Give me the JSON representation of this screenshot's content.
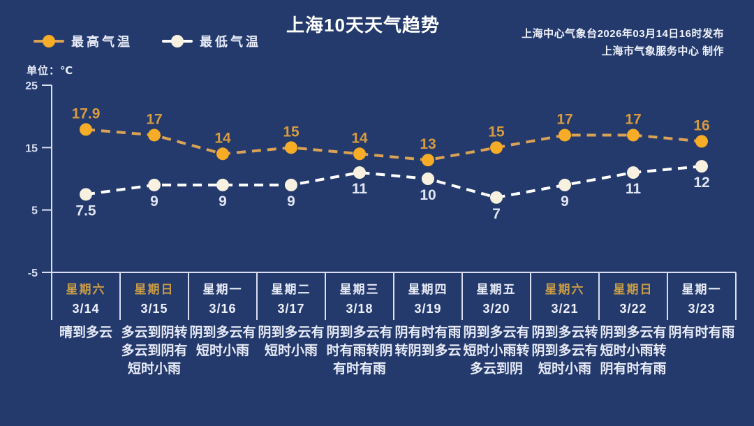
{
  "header": {
    "title": "上海10天天气趋势",
    "publisher_line1": "上海中心气象台2026年03月14日16时发布",
    "publisher_line2": "上海市气象服务中心  制作",
    "unit_label": "单位：℃",
    "legend": [
      {
        "label": "最高气温",
        "color": "#F6AC26"
      },
      {
        "label": "最低气温",
        "color": "#F8F1DF"
      }
    ]
  },
  "chart_data": {
    "type": "line",
    "title": "上海10天天气趋势",
    "ylabel": "单位：℃",
    "ylim": [
      -5,
      25
    ],
    "yticks": [
      25,
      15,
      5,
      -5
    ],
    "grid": false,
    "legend_position": "top-left",
    "line_style": "dashed",
    "categories": [
      "3/14",
      "3/15",
      "3/16",
      "3/17",
      "3/18",
      "3/19",
      "3/20",
      "3/21",
      "3/22",
      "3/23"
    ],
    "series": [
      {
        "name": "最高气温",
        "color": "#F6AC26",
        "values": [
          17.9,
          17,
          14,
          15,
          14,
          13,
          15,
          17,
          17,
          16
        ]
      },
      {
        "name": "最低气温",
        "color": "#FFFFFF",
        "values": [
          7.5,
          9,
          9,
          9,
          11,
          10,
          7,
          9,
          11,
          12
        ]
      }
    ],
    "days": [
      {
        "weekday": "星期六",
        "date": "3/14",
        "weekend": true,
        "weather": "晴到多云"
      },
      {
        "weekday": "星期日",
        "date": "3/15",
        "weekend": true,
        "weather": "多云到阴转多云到阴有短时小雨"
      },
      {
        "weekday": "星期一",
        "date": "3/16",
        "weekend": false,
        "weather": "阴到多云有短时小雨"
      },
      {
        "weekday": "星期二",
        "date": "3/17",
        "weekend": false,
        "weather": "阴到多云有短时小雨"
      },
      {
        "weekday": "星期三",
        "date": "3/18",
        "weekend": false,
        "weather": "阴到多云有时有雨转阴有时有雨"
      },
      {
        "weekday": "星期四",
        "date": "3/19",
        "weekend": false,
        "weather": "阴有时有雨转阴到多云"
      },
      {
        "weekday": "星期五",
        "date": "3/20",
        "weekend": false,
        "weather": "阴到多云有短时小雨转多云到阴"
      },
      {
        "weekday": "星期六",
        "date": "3/21",
        "weekend": true,
        "weather": "阴到多云转阴到多云有短时小雨"
      },
      {
        "weekday": "星期日",
        "date": "3/22",
        "weekend": true,
        "weather": "阴到多云有短时小雨转阴有时有雨"
      },
      {
        "weekday": "星期一",
        "date": "3/23",
        "weendend": false,
        "weekend": false,
        "weather": "阴有时有雨"
      }
    ]
  },
  "colors": {
    "background": "#243A6C",
    "high_line": "#D9A254",
    "high_marker": "#F6AC26",
    "high_label": "#D89B3F",
    "low_line": "#FFFFFF",
    "low_marker": "#F8F1DF",
    "low_label": "#E2E5F4",
    "axis": "#D9DEF0",
    "tick_label": "#D8DEF2",
    "weekend_day": "#C99C45",
    "weekday_day": "#E8EBF7"
  }
}
